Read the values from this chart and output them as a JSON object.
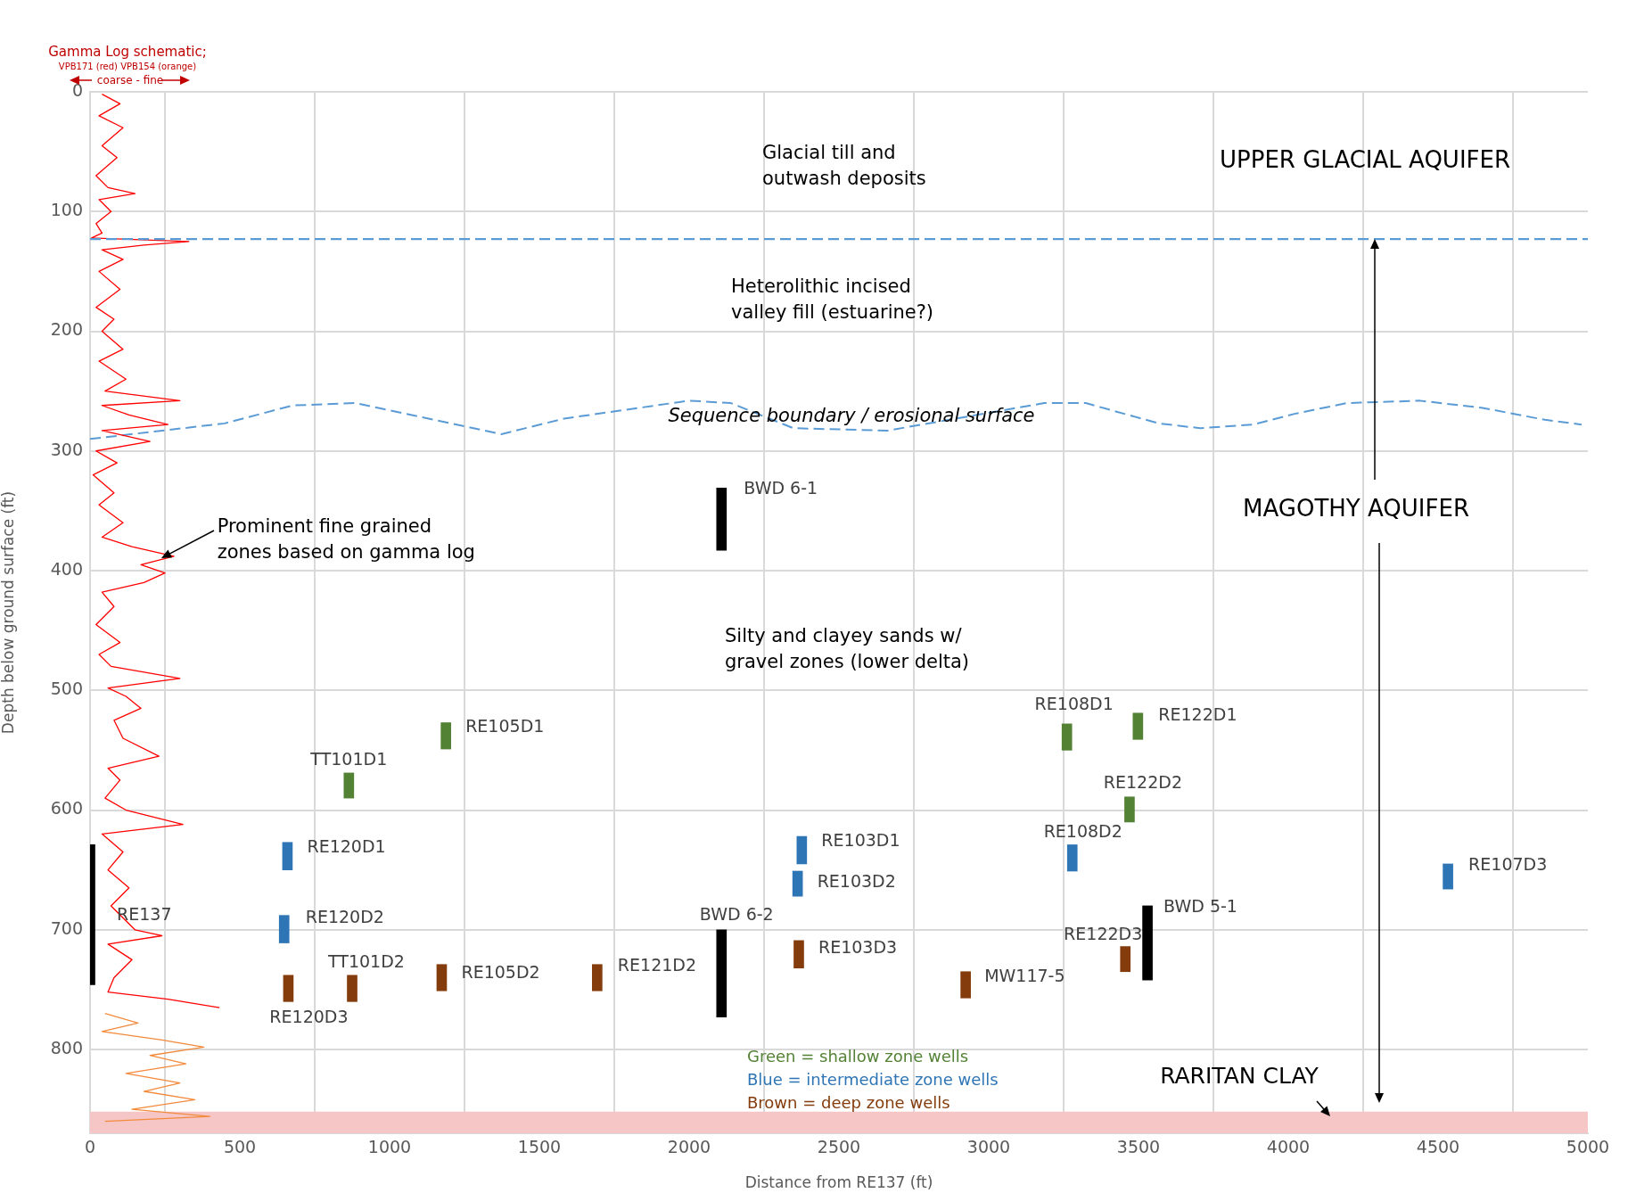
{
  "chart_data": {
    "type": "bar",
    "xlabel": "Distance from RE137 (ft)",
    "ylabel": "Depth below ground surface (ft)",
    "xlim": [
      0,
      5000
    ],
    "xticks": [
      0,
      500,
      1000,
      1500,
      2000,
      2500,
      3000,
      3500,
      4000,
      4500,
      5000
    ],
    "ylim": [
      870,
      0
    ],
    "yticks": [
      0,
      100,
      200,
      300,
      400,
      500,
      600,
      700,
      800
    ],
    "grid": true,
    "series": [
      {
        "color": "#000000",
        "x": [
          0,
          2108,
          3530
        ],
        "base": [
          629,
          331,
          680
        ],
        "values": [
          117,
          52,
          62
        ]
      },
      {
        "color": "#000000",
        "x": [
          2108
        ],
        "base": [
          700
        ],
        "values": [
          73
        ]
      },
      {
        "color": "#548235",
        "x": [
          864,
          1188,
          3261,
          3470,
          3498
        ],
        "base": [
          569,
          527,
          528,
          589,
          519
        ],
        "values": [
          21,
          22,
          22,
          21,
          22
        ]
      },
      {
        "color": "#2e75b6",
        "x": [
          648,
          659,
          2362,
          2376,
          3279,
          4533
        ],
        "base": [
          688,
          627,
          651,
          622,
          629,
          645
        ],
        "values": [
          23,
          23,
          21,
          23,
          22,
          21
        ]
      },
      {
        "color": "#843c0c",
        "x": [
          662,
          875,
          1174,
          1693,
          2366,
          2923,
          3456
        ],
        "base": [
          738,
          738,
          729,
          729,
          709,
          735,
          714
        ],
        "values": [
          22,
          22,
          22,
          22,
          23,
          22,
          21
        ]
      },
      {
        "type": "line",
        "color": "#ff0000",
        "x": [
          40,
          100,
          30,
          110,
          40,
          90,
          20,
          60,
          150,
          30,
          70,
          20,
          40,
          5,
          330,
          180,
          40,
          110,
          30,
          100,
          20,
          80,
          40,
          110,
          30,
          120,
          50,
          300,
          40,
          130,
          260,
          40,
          200,
          20,
          90,
          10,
          80,
          30,
          110,
          40,
          140,
          280,
          170,
          250,
          180,
          40,
          80,
          20,
          100,
          30,
          70,
          300,
          60,
          120,
          170,
          80,
          110,
          230,
          60,
          100,
          50,
          120,
          310,
          40,
          110,
          60,
          130,
          70,
          150,
          240,
          60,
          140,
          80,
          60,
          260,
          432
        ],
        "values": [
          2,
          10,
          20,
          30,
          45,
          55,
          70,
          80,
          85,
          90,
          100,
          110,
          118,
          122,
          125,
          128,
          132,
          140,
          150,
          165,
          180,
          190,
          200,
          215,
          225,
          240,
          250,
          258,
          262,
          270,
          278,
          283,
          292,
          300,
          310,
          320,
          335,
          345,
          360,
          372,
          380,
          388,
          395,
          402,
          410,
          418,
          430,
          445,
          460,
          470,
          480,
          490,
          498,
          505,
          515,
          525,
          540,
          555,
          565,
          575,
          590,
          600,
          612,
          620,
          635,
          650,
          665,
          680,
          700,
          705,
          712,
          725,
          740,
          752,
          758,
          765
        ]
      },
      {
        "type": "line",
        "color": "#f28a3c",
        "x": [
          50,
          160,
          40,
          240,
          380,
          200,
          320,
          120,
          300,
          180,
          350,
          140,
          400,
          50
        ],
        "values": [
          770,
          778,
          785,
          792,
          798,
          805,
          812,
          820,
          828,
          835,
          842,
          850,
          856,
          860
        ]
      },
      {
        "type": "line",
        "color": "#5b9bd5",
        "line_style": "dashed",
        "x": [
          0,
          449,
          676,
          885,
          1373,
          1582,
          2000,
          2139,
          2348,
          2662,
          3185,
          3324,
          3568,
          3707,
          3882,
          4021,
          4195,
          4439,
          4648,
          4857,
          4979
        ],
        "values": [
          290,
          277,
          262,
          260,
          286,
          273,
          258,
          260,
          281,
          283,
          260,
          260,
          277,
          281,
          278,
          269,
          260,
          258,
          264,
          274,
          278
        ]
      }
    ],
    "ref_lines": [
      {
        "axis": "y",
        "value": 123,
        "color": "#5b9bd5",
        "line_style": "dashed"
      }
    ],
    "bands": [
      {
        "axis": "y",
        "from": 852,
        "to": 870,
        "label": "RARITAN CLAY",
        "color": "#f6c6c6"
      }
    ],
    "annotations": [
      "Gamma Log schematic;",
      "VPB171 (red) VPB154 (orange)",
      "coarse - fine",
      "Glacial till and\noutwash deposits",
      "UPPER GLACIAL AQUIFER",
      "Heterolithic incised\nvalley fill (estuarine?)",
      "Sequence boundary / erosional surface",
      "MAGOTHY AQUIFER",
      {
        "text": "Prominent fine grained\nzones based on gamma log",
        "x": 240,
        "y": 390
      },
      "Silty and clayey sands w/\ngravel zones (lower delta)",
      "Green = shallow zone wells",
      "Blue = intermediate zone wells",
      "Brown = deep zone wells",
      {
        "text": "RE137",
        "x": 0,
        "y": 688
      },
      {
        "text": "BWD 6-1",
        "x": 2108,
        "y": 331
      },
      {
        "text": "BWD 6-2",
        "x": 2108,
        "y": 700
      },
      {
        "text": "BWD 5-1",
        "x": 3530,
        "y": 680
      },
      {
        "text": "RE105D1",
        "x": 1188,
        "y": 527
      },
      {
        "text": "TT101D1",
        "x": 864,
        "y": 569
      },
      {
        "text": "RE108D1",
        "x": 3261,
        "y": 528
      },
      {
        "text": "RE122D1",
        "x": 3498,
        "y": 519
      },
      {
        "text": "RE122D2",
        "x": 3470,
        "y": 589
      },
      {
        "text": "RE120D1",
        "x": 659,
        "y": 627
      },
      {
        "text": "RE103D1",
        "x": 2376,
        "y": 622
      },
      {
        "text": "RE103D2",
        "x": 2362,
        "y": 651
      },
      {
        "text": "RE108D2",
        "x": 3279,
        "y": 629
      },
      {
        "text": "RE107D3",
        "x": 4533,
        "y": 645
      },
      {
        "text": "RE120D2",
        "x": 648,
        "y": 688
      },
      {
        "text": "RE103D3",
        "x": 2366,
        "y": 709
      },
      {
        "text": "RE122D3",
        "x": 3456,
        "y": 714
      },
      {
        "text": "MW117-5",
        "x": 2923,
        "y": 735
      },
      {
        "text": "RE105D2",
        "x": 1174,
        "y": 729
      },
      {
        "text": "RE121D2",
        "x": 1693,
        "y": 729
      },
      {
        "text": "TT101D2",
        "x": 875,
        "y": 738
      },
      {
        "text": "RE120D3",
        "x": 662,
        "y": 738
      }
    ]
  }
}
